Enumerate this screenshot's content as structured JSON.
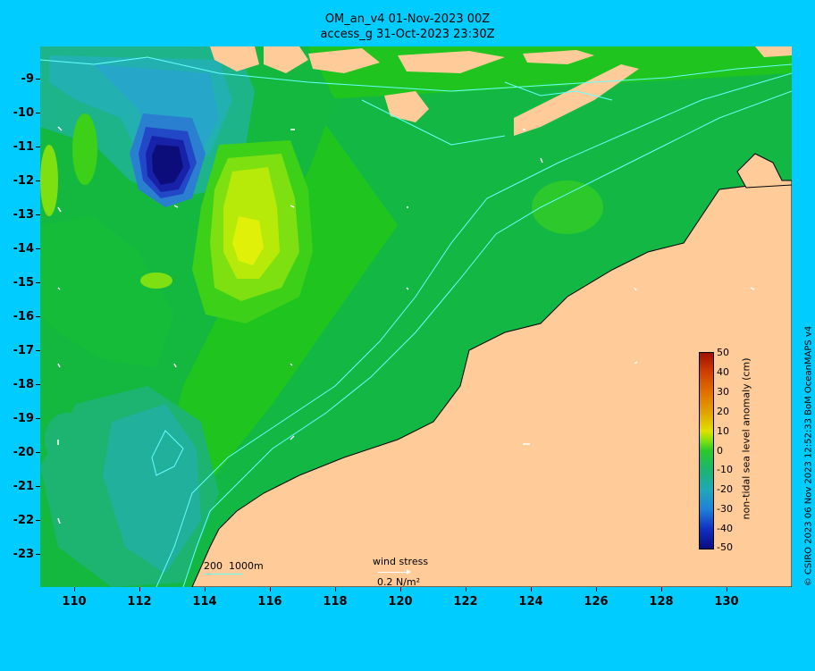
{
  "title": {
    "line1": "OM_an_v4  01-Nov-2023 00Z",
    "line2": "access_g 31-Oct-2023 23:30Z"
  },
  "axes": {
    "lat_labels": [
      "-9",
      "-10",
      "-11",
      "-12",
      "-13",
      "-14",
      "-15",
      "-16",
      "-17",
      "-18",
      "-19",
      "-20",
      "-21",
      "-22",
      "-23"
    ],
    "lon_labels": [
      "110",
      "112",
      "114",
      "116",
      "118",
      "120",
      "122",
      "124",
      "126",
      "128",
      "130"
    ],
    "lon_range": [
      109,
      132
    ],
    "lat_range": [
      -8,
      -24
    ]
  },
  "legend": {
    "title": "non-tidal sea level anomaly (cm)",
    "ticks": [
      "50",
      "40",
      "30",
      "20",
      "10",
      "0",
      "-10",
      "-20",
      "-30",
      "-40",
      "-50"
    ],
    "range": [
      -50,
      50
    ]
  },
  "contours_label": {
    "text_200": "200",
    "text_1000": "1000m"
  },
  "wind": {
    "label": "wind stress",
    "unit": "0.2 N/m²"
  },
  "credit": "© CSIRO 2023   06 Nov 2023 12:52:33 BoM OceanMAPS v4",
  "colors": {
    "background": "#00ccff",
    "land": "#ffcc99",
    "contour": "#66ffff",
    "ocean_base": "#1fc41f"
  }
}
